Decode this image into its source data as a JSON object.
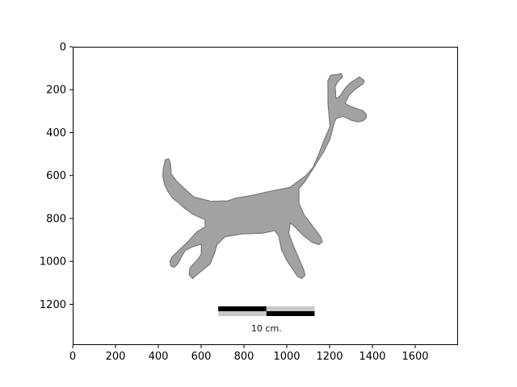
{
  "chart_data": {
    "type": "image",
    "title": "",
    "xlabel": "",
    "ylabel": "",
    "xlim": [
      0,
      1800
    ],
    "ylim": [
      1390,
      0
    ],
    "y_inverted": true,
    "xticks": [
      0,
      200,
      400,
      600,
      800,
      1000,
      1200,
      1400,
      1600
    ],
    "yticks": [
      0,
      200,
      400,
      600,
      800,
      1000,
      1200
    ],
    "grid": false,
    "image_content": {
      "subject": "grey silhouette of a four-legged animal with branched antlers",
      "fill_color": "#a2a2a2",
      "outline_color": "#7a7a7a",
      "outline": [
        [
          423,
          570
        ],
        [
          432,
          527
        ],
        [
          448,
          522
        ],
        [
          457,
          545
        ],
        [
          460,
          592
        ],
        [
          487,
          628
        ],
        [
          530,
          668
        ],
        [
          566,
          700
        ],
        [
          646,
          720
        ],
        [
          725,
          718
        ],
        [
          760,
          706
        ],
        [
          836,
          693
        ],
        [
          905,
          677
        ],
        [
          1016,
          655
        ],
        [
          1044,
          633
        ],
        [
          1090,
          600
        ],
        [
          1123,
          562
        ],
        [
          1150,
          498
        ],
        [
          1178,
          426
        ],
        [
          1202,
          372
        ],
        [
          1193,
          268
        ],
        [
          1192,
          158
        ],
        [
          1205,
          133
        ],
        [
          1240,
          128
        ],
        [
          1255,
          125
        ],
        [
          1260,
          140
        ],
        [
          1237,
          165
        ],
        [
          1226,
          185
        ],
        [
          1230,
          242
        ],
        [
          1248,
          230
        ],
        [
          1275,
          190
        ],
        [
          1300,
          166
        ],
        [
          1340,
          140
        ],
        [
          1362,
          158
        ],
        [
          1357,
          172
        ],
        [
          1320,
          198
        ],
        [
          1292,
          224
        ],
        [
          1272,
          262
        ],
        [
          1295,
          277
        ],
        [
          1332,
          290
        ],
        [
          1356,
          298
        ],
        [
          1370,
          313
        ],
        [
          1372,
          330
        ],
        [
          1357,
          345
        ],
        [
          1332,
          350
        ],
        [
          1300,
          342
        ],
        [
          1282,
          333
        ],
        [
          1262,
          324
        ],
        [
          1230,
          335
        ],
        [
          1221,
          356
        ],
        [
          1202,
          430
        ],
        [
          1172,
          490
        ],
        [
          1115,
          580
        ],
        [
          1085,
          628
        ],
        [
          1057,
          660
        ],
        [
          1057,
          730
        ],
        [
          1082,
          785
        ],
        [
          1120,
          835
        ],
        [
          1156,
          882
        ],
        [
          1166,
          908
        ],
        [
          1150,
          922
        ],
        [
          1120,
          912
        ],
        [
          1080,
          882
        ],
        [
          1040,
          842
        ],
        [
          1016,
          820
        ],
        [
          1009,
          870
        ],
        [
          1032,
          930
        ],
        [
          1058,
          990
        ],
        [
          1080,
          1042
        ],
        [
          1085,
          1065
        ],
        [
          1070,
          1080
        ],
        [
          1050,
          1070
        ],
        [
          1030,
          1040
        ],
        [
          1000,
          995
        ],
        [
          975,
          945
        ],
        [
          962,
          880
        ],
        [
          944,
          857
        ],
        [
          890,
          868
        ],
        [
          790,
          872
        ],
        [
          712,
          885
        ],
        [
          674,
          922
        ],
        [
          661,
          965
        ],
        [
          642,
          1012
        ],
        [
          608,
          1040
        ],
        [
          582,
          1060
        ],
        [
          560,
          1080
        ],
        [
          544,
          1062
        ],
        [
          548,
          1030
        ],
        [
          576,
          1000
        ],
        [
          600,
          968
        ],
        [
          602,
          920
        ],
        [
          560,
          932
        ],
        [
          525,
          950
        ],
        [
          510,
          975
        ],
        [
          492,
          1010
        ],
        [
          474,
          1028
        ],
        [
          459,
          1022
        ],
        [
          454,
          1000
        ],
        [
          465,
          978
        ],
        [
          503,
          942
        ],
        [
          541,
          905
        ],
        [
          580,
          862
        ],
        [
          620,
          838
        ],
        [
          617,
          805
        ],
        [
          560,
          780
        ],
        [
          522,
          752
        ],
        [
          496,
          728
        ],
        [
          468,
          707
        ],
        [
          446,
          676
        ],
        [
          430,
          645
        ],
        [
          421,
          602
        ]
      ]
    },
    "scale_bar": {
      "label": "10 cm.",
      "x_start": 680,
      "x_end": 1130,
      "segments": 2,
      "colors": [
        "#000000",
        "#c8c8c8"
      ]
    }
  }
}
